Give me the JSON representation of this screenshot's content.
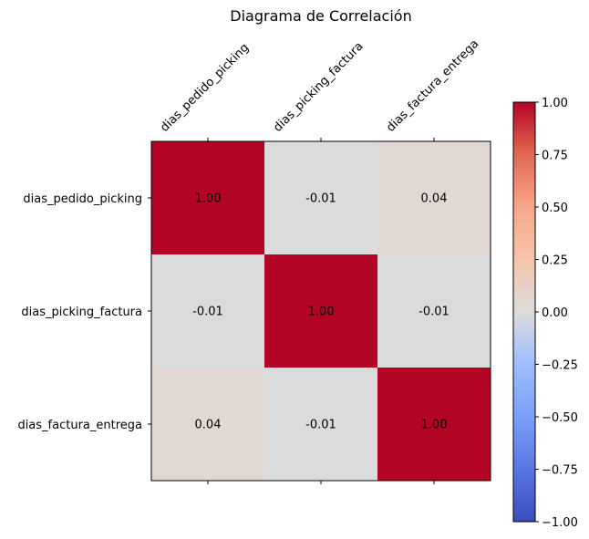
{
  "chart_data": {
    "type": "heatmap",
    "title": "Diagrama de Correlación",
    "x_categories": [
      "dias_pedido_picking",
      "dias_picking_factura",
      "dias_factura_entrega"
    ],
    "y_categories": [
      "dias_pedido_picking",
      "dias_picking_factura",
      "dias_factura_entrega"
    ],
    "values": [
      [
        1.0,
        -0.01,
        0.04
      ],
      [
        -0.01,
        1.0,
        -0.01
      ],
      [
        0.04,
        -0.01,
        1.0
      ]
    ],
    "cell_labels": [
      [
        "1.00",
        "-0.01",
        "0.04"
      ],
      [
        "-0.01",
        "1.00",
        "-0.01"
      ],
      [
        "0.04",
        "-0.01",
        "1.00"
      ]
    ],
    "colormap": "coolwarm",
    "vmin": -1.0,
    "vmax": 1.0,
    "colorbar": {
      "ticks": [
        1.0,
        0.75,
        0.5,
        0.25,
        0.0,
        -0.25,
        -0.5,
        -0.75,
        -1.0
      ],
      "tick_labels": [
        "1.00",
        "0.75",
        "0.50",
        "0.25",
        "0.00",
        "−0.25",
        "−0.50",
        "−0.75",
        "−1.00"
      ]
    },
    "x_axis_position": "top",
    "grid": false
  }
}
